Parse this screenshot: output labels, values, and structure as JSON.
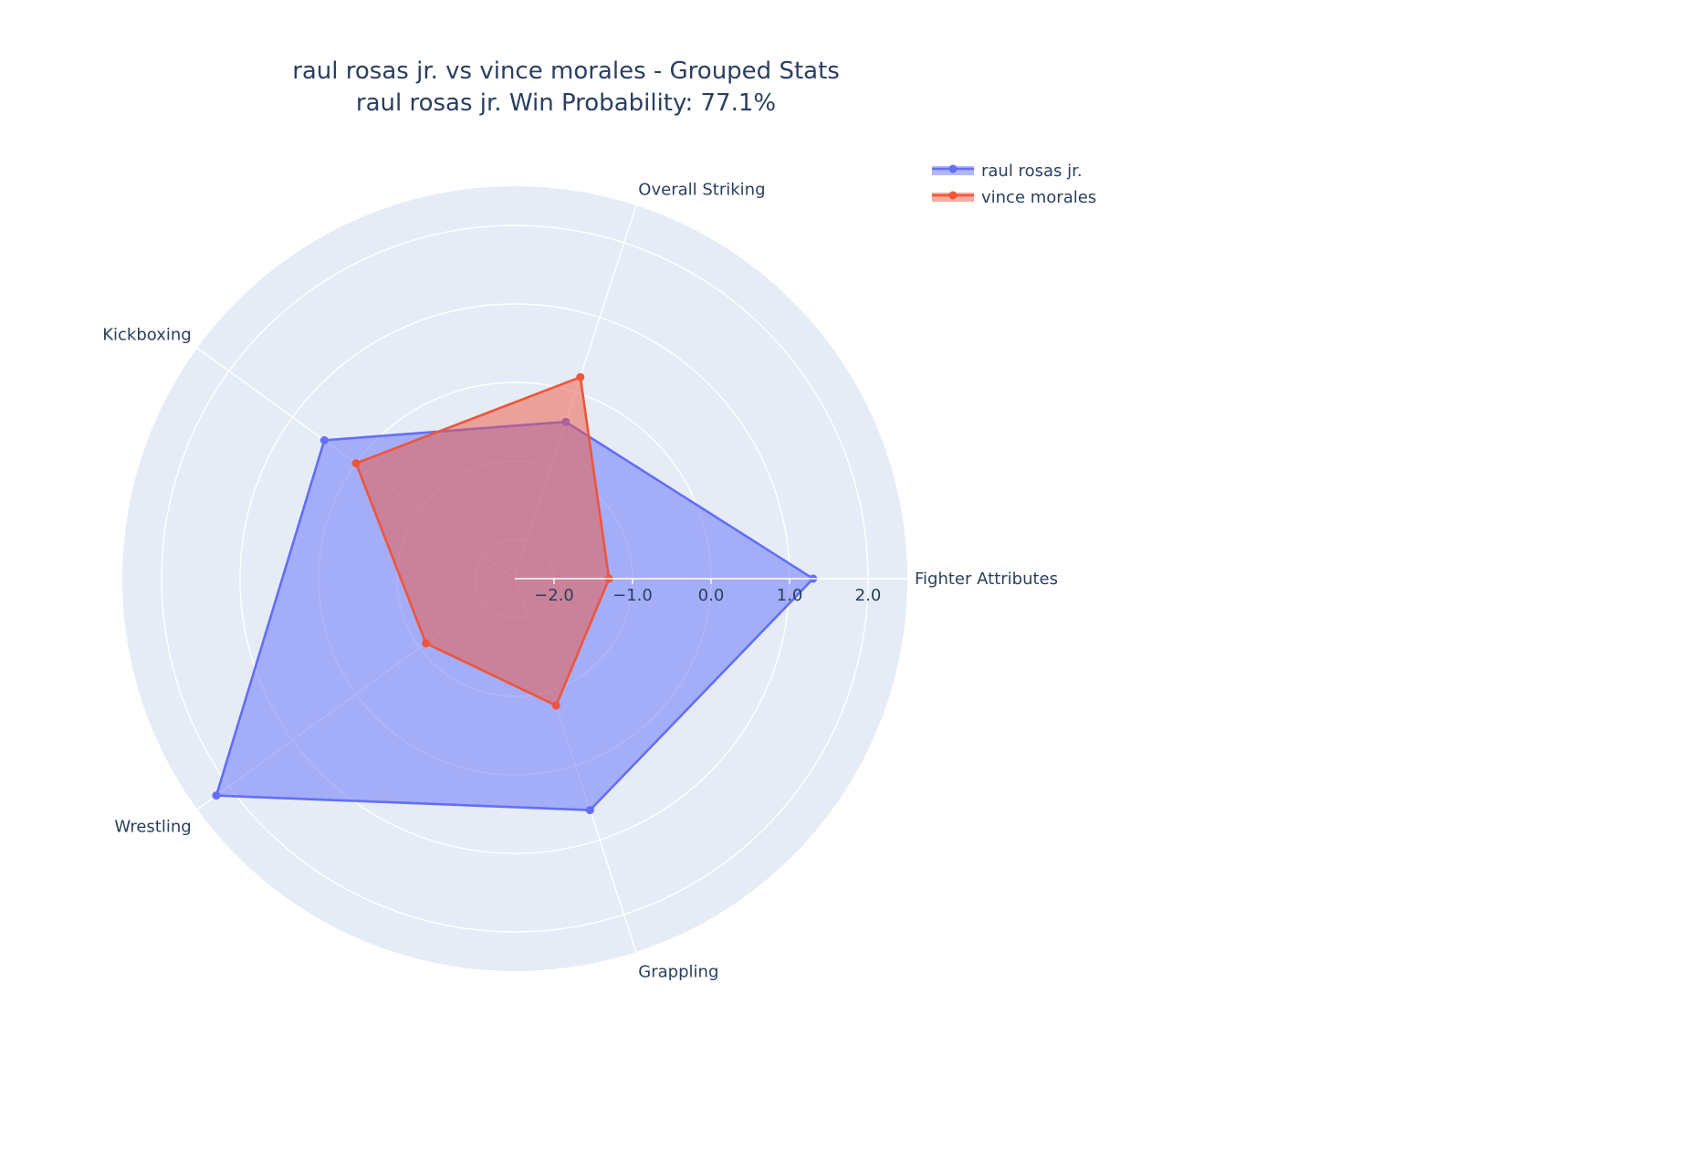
{
  "chart_data": {
    "type": "radar",
    "title": "raul rosas jr. vs vince morales - Grouped Stats",
    "subtitle": "raul rosas jr. Win Probability: 77.1%",
    "categories": [
      "Fighter Attributes",
      "Overall Striking",
      "Kickboxing",
      "Wrestling",
      "Grappling"
    ],
    "radial_range": [
      -2.5,
      2.5
    ],
    "radial_ticks": [
      -2.0,
      -1.0,
      0.0,
      1.0,
      2.0
    ],
    "radial_tick_labels": [
      "−2.0",
      "−1.0",
      "0.0",
      "1.0",
      "2.0"
    ],
    "grid": true,
    "legend_position": "top-right",
    "series": [
      {
        "name": "raul rosas jr.",
        "color": "#636efa",
        "values": [
          1.3,
          -0.4,
          0.5,
          2.2,
          0.6
        ]
      },
      {
        "name": "vince morales",
        "color": "#ef553b",
        "values": [
          -1.3,
          0.2,
          0.0,
          -1.1,
          -0.8
        ]
      }
    ]
  }
}
